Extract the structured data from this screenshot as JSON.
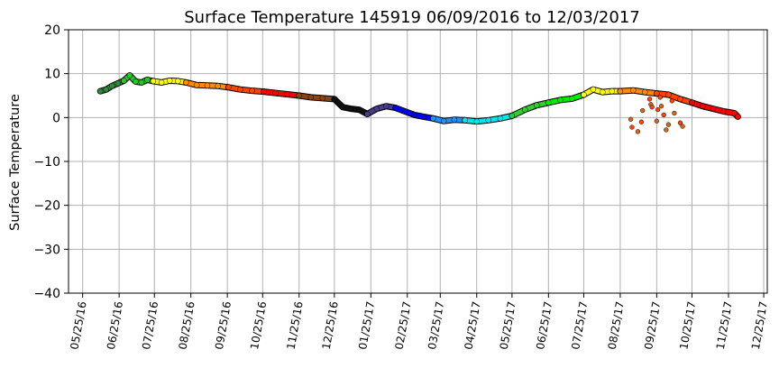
{
  "chart_data": {
    "type": "scatter",
    "title": "Surface Temperature 145919  06/09/2016 to 12/03/2017",
    "xlabel": "",
    "ylabel": "Surface Temperature",
    "ylim": [
      -40,
      20
    ],
    "yticks": [
      20,
      10,
      0,
      -10,
      -20,
      -30,
      -40
    ],
    "xlim": [
      "2016-05-13",
      "2017-12-28"
    ],
    "xticks": [
      {
        "date": "2016-05-25",
        "label": "05/25/16"
      },
      {
        "date": "2016-06-25",
        "label": "06/25/16"
      },
      {
        "date": "2016-07-25",
        "label": "07/25/16"
      },
      {
        "date": "2016-08-25",
        "label": "08/25/16"
      },
      {
        "date": "2016-09-25",
        "label": "09/25/16"
      },
      {
        "date": "2016-10-25",
        "label": "10/25/16"
      },
      {
        "date": "2016-11-25",
        "label": "11/25/16"
      },
      {
        "date": "2016-12-25",
        "label": "12/25/16"
      },
      {
        "date": "2017-01-25",
        "label": "01/25/17"
      },
      {
        "date": "2017-02-25",
        "label": "02/25/17"
      },
      {
        "date": "2017-03-25",
        "label": "03/25/17"
      },
      {
        "date": "2017-04-25",
        "label": "04/25/17"
      },
      {
        "date": "2017-05-25",
        "label": "05/25/17"
      },
      {
        "date": "2017-06-25",
        "label": "06/25/17"
      },
      {
        "date": "2017-07-25",
        "label": "07/25/17"
      },
      {
        "date": "2017-08-25",
        "label": "08/25/17"
      },
      {
        "date": "2017-09-25",
        "label": "09/25/17"
      },
      {
        "date": "2017-10-25",
        "label": "10/25/17"
      },
      {
        "date": "2017-11-25",
        "label": "11/25/17"
      },
      {
        "date": "2017-12-25",
        "label": "12/25/17"
      }
    ],
    "grid": true,
    "legend": "none",
    "series": [
      {
        "color": "#2e8b3a",
        "x": [
          "2016-06-09",
          "2016-06-14",
          "2016-06-19",
          "2016-06-24",
          "2016-06-29"
        ],
        "y": [
          6.0,
          6.4,
          7.2,
          7.8,
          8.4
        ]
      },
      {
        "color": "#22cc22",
        "x": [
          "2016-06-29",
          "2016-07-04",
          "2016-07-09",
          "2016-07-14",
          "2016-07-19",
          "2016-07-24"
        ],
        "y": [
          8.4,
          9.6,
          8.2,
          8.0,
          8.6,
          8.3
        ]
      },
      {
        "color": "#ffff00",
        "x": [
          "2016-07-24",
          "2016-07-31",
          "2016-08-07",
          "2016-08-14",
          "2016-08-21"
        ],
        "y": [
          8.3,
          8.0,
          8.4,
          8.3,
          8.0
        ]
      },
      {
        "color": "#ff8c00",
        "x": [
          "2016-08-21",
          "2016-08-30",
          "2016-09-08",
          "2016-09-17",
          "2016-09-26"
        ],
        "y": [
          8.0,
          7.4,
          7.3,
          7.2,
          6.9
        ]
      },
      {
        "color": "#ff4500",
        "x": [
          "2016-09-26",
          "2016-10-06",
          "2016-10-16",
          "2016-10-26"
        ],
        "y": [
          6.9,
          6.4,
          6.1,
          5.9
        ]
      },
      {
        "color": "#ff0000",
        "x": [
          "2016-10-26",
          "2016-11-05",
          "2016-11-15",
          "2016-11-25"
        ],
        "y": [
          5.9,
          5.6,
          5.3,
          5.0
        ]
      },
      {
        "color": "#8b4513",
        "x": [
          "2016-11-25",
          "2016-12-05",
          "2016-12-15",
          "2016-12-25"
        ],
        "y": [
          5.0,
          4.6,
          4.4,
          4.2
        ]
      },
      {
        "color": "#111111",
        "x": [
          "2016-12-25",
          "2017-01-01",
          "2017-01-08",
          "2017-01-15",
          "2017-01-22"
        ],
        "y": [
          4.2,
          2.4,
          2.0,
          1.8,
          0.8
        ]
      },
      {
        "color": "#483d8b",
        "x": [
          "2017-01-22",
          "2017-01-30",
          "2017-02-07",
          "2017-02-15"
        ],
        "y": [
          0.8,
          2.0,
          2.6,
          2.2
        ]
      },
      {
        "color": "#0000ff",
        "x": [
          "2017-02-15",
          "2017-02-23",
          "2017-03-03",
          "2017-03-11",
          "2017-03-19"
        ],
        "y": [
          2.2,
          1.4,
          0.6,
          0.2,
          -0.2
        ]
      },
      {
        "color": "#1e90ff",
        "x": [
          "2017-03-19",
          "2017-03-28",
          "2017-04-06",
          "2017-04-15"
        ],
        "y": [
          -0.2,
          -0.8,
          -0.5,
          -0.6
        ]
      },
      {
        "color": "#00e5ee",
        "x": [
          "2017-04-15",
          "2017-04-25",
          "2017-05-05",
          "2017-05-15",
          "2017-05-25"
        ],
        "y": [
          -0.6,
          -0.9,
          -0.6,
          -0.2,
          0.4
        ]
      },
      {
        "color": "#32cd32",
        "x": [
          "2017-05-25",
          "2017-06-05",
          "2017-06-15",
          "2017-06-25"
        ],
        "y": [
          0.4,
          1.8,
          2.8,
          3.4
        ]
      },
      {
        "color": "#00ee00",
        "x": [
          "2017-06-25",
          "2017-07-05",
          "2017-07-15",
          "2017-07-25"
        ],
        "y": [
          3.4,
          4.0,
          4.3,
          5.2
        ]
      },
      {
        "color": "#ffff00",
        "x": [
          "2017-07-25",
          "2017-08-02",
          "2017-08-10",
          "2017-08-18",
          "2017-08-25"
        ],
        "y": [
          5.2,
          6.4,
          5.8,
          6.0,
          6.0
        ]
      },
      {
        "color": "#ff8c00",
        "x": [
          "2017-08-25",
          "2017-09-05",
          "2017-09-15",
          "2017-09-25"
        ],
        "y": [
          6.0,
          6.2,
          5.8,
          5.5
        ]
      },
      {
        "color": "#ff4500",
        "x": [
          "2017-09-25",
          "2017-10-05",
          "2017-10-15",
          "2017-10-25"
        ],
        "y": [
          5.5,
          5.2,
          4.2,
          3.4
        ]
      },
      {
        "color": "#ff0000",
        "x": [
          "2017-10-25",
          "2017-11-03",
          "2017-11-12",
          "2017-11-21",
          "2017-11-30",
          "2017-12-03"
        ],
        "y": [
          3.4,
          2.6,
          2.0,
          1.4,
          1.0,
          0.2
        ]
      }
    ],
    "outliers": {
      "colors": [
        "#d2691e",
        "#ff4500"
      ],
      "x": [
        "2017-09-03",
        "2017-09-04",
        "2017-09-09",
        "2017-09-12",
        "2017-09-13",
        "2017-09-19",
        "2017-09-20",
        "2017-09-21",
        "2017-09-25",
        "2017-09-26",
        "2017-09-29",
        "2017-10-01",
        "2017-10-05",
        "2017-10-08",
        "2017-10-10",
        "2017-10-15",
        "2017-10-17",
        "2017-09-28",
        "2017-10-03"
      ],
      "y": [
        -0.4,
        -2.2,
        -3.2,
        -1.0,
        1.6,
        4.2,
        3.0,
        2.4,
        -0.8,
        1.8,
        2.6,
        0.6,
        -1.6,
        3.8,
        1.0,
        -1.2,
        -2.0,
        4.6,
        -2.8
      ]
    }
  }
}
